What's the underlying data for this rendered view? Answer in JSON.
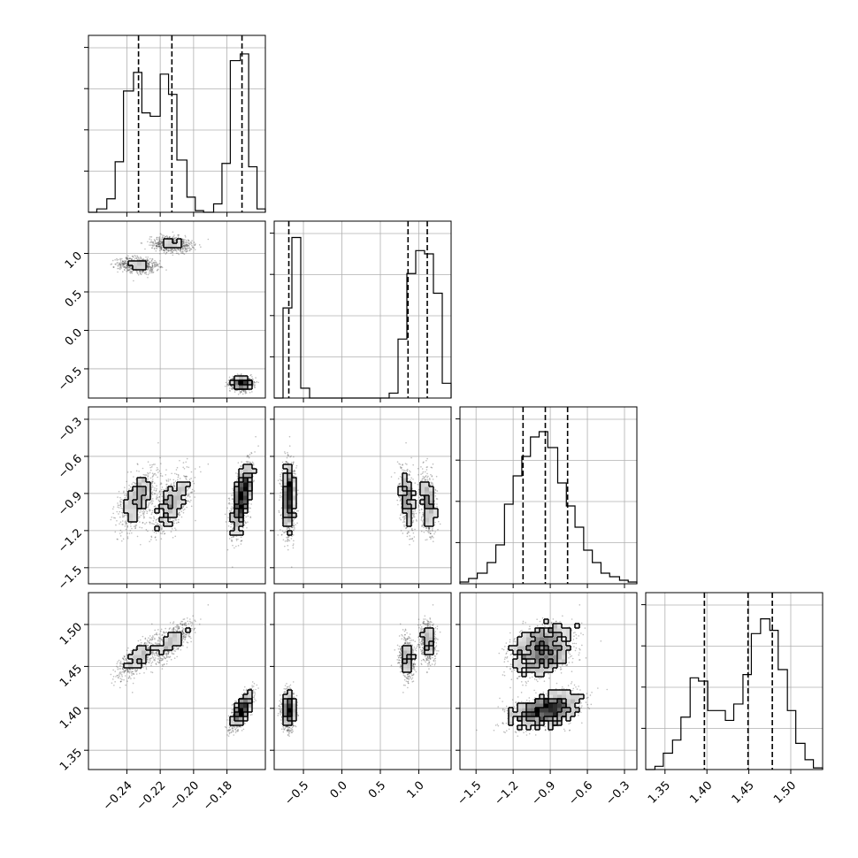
{
  "chart_data": {
    "type": "corner",
    "grid": true,
    "parameters": [
      {
        "range": [
          -0.263,
          -0.157
        ],
        "ticks": [
          -0.24,
          -0.22,
          -0.2,
          -0.18
        ],
        "tick_labels": [
          "−0.24",
          "−0.22",
          "−0.20",
          "−0.18"
        ],
        "quantiles": [
          -0.233,
          -0.213,
          -0.171
        ],
        "hist_ylim": [
          0,
          0.105
        ],
        "hist_bin_edges": [
          -0.263,
          -0.258,
          -0.252,
          -0.247,
          -0.242,
          -0.236,
          -0.231,
          -0.226,
          -0.22,
          -0.215,
          -0.21,
          -0.204,
          -0.199,
          -0.194,
          -0.188,
          -0.183,
          -0.178,
          -0.172,
          -0.167,
          -0.162,
          -0.157
        ],
        "hist_counts": [
          0.0,
          0.002,
          0.008,
          0.03,
          0.072,
          0.083,
          0.059,
          0.057,
          0.082,
          0.07,
          0.031,
          0.009,
          0.001,
          0.0,
          0.005,
          0.029,
          0.09,
          0.094,
          0.027,
          0.002
        ]
      },
      {
        "range": [
          -0.88,
          1.42
        ],
        "ticks": [
          -0.5,
          0.0,
          0.5,
          1.0
        ],
        "tick_labels": [
          "−0.5",
          "0.0",
          "0.5",
          "1.0"
        ],
        "quantiles": [
          -0.69,
          0.86,
          1.11
        ],
        "hist_ylim": [
          0,
          0.108
        ],
        "hist_bin_edges": [
          -0.88,
          -0.765,
          -0.65,
          -0.535,
          -0.42,
          -0.305,
          -0.19,
          -0.075,
          0.04,
          0.155,
          0.27,
          0.385,
          0.5,
          0.615,
          0.73,
          0.845,
          0.96,
          1.075,
          1.19,
          1.305,
          1.42
        ],
        "hist_counts": [
          0.0,
          0.055,
          0.098,
          0.006,
          0.0,
          0.0,
          0.0,
          0.0,
          0.0,
          0.0,
          0.0,
          0.0,
          0.0,
          0.003,
          0.036,
          0.076,
          0.09,
          0.088,
          0.064,
          0.009
        ]
      },
      {
        "range": [
          -1.63,
          -0.2
        ],
        "ticks": [
          -1.5,
          -1.2,
          -0.9,
          -0.6,
          -0.3
        ],
        "tick_labels": [
          "−1.5",
          "−1.2",
          "−0.9",
          "−0.6",
          "−0.3"
        ],
        "quantiles": [
          -1.12,
          -0.94,
          -0.76
        ],
        "hist_ylim": [
          0,
          0.1
        ],
        "hist_bin_edges": [
          -1.63,
          -1.56,
          -1.49,
          -1.41,
          -1.34,
          -1.27,
          -1.2,
          -1.13,
          -1.06,
          -0.99,
          -0.92,
          -0.84,
          -0.77,
          -0.7,
          -0.63,
          -0.56,
          -0.49,
          -0.42,
          -0.34,
          -0.27,
          -0.2
        ],
        "hist_counts": [
          0.001,
          0.003,
          0.006,
          0.012,
          0.022,
          0.045,
          0.061,
          0.072,
          0.083,
          0.086,
          0.077,
          0.057,
          0.044,
          0.032,
          0.019,
          0.012,
          0.006,
          0.004,
          0.002,
          0.001
        ]
      },
      {
        "range": [
          1.327,
          1.538
        ],
        "ticks": [
          1.35,
          1.4,
          1.45,
          1.5
        ],
        "tick_labels": [
          "1.35",
          "1.40",
          "1.45",
          "1.50"
        ],
        "quantiles": [
          1.397,
          1.449,
          1.478
        ],
        "hist_ylim": [
          0,
          0.108
        ],
        "hist_bin_edges": [
          1.327,
          1.338,
          1.348,
          1.359,
          1.369,
          1.38,
          1.39,
          1.401,
          1.411,
          1.422,
          1.432,
          1.443,
          1.453,
          1.464,
          1.475,
          1.485,
          1.496,
          1.506,
          1.517,
          1.527,
          1.538
        ],
        "hist_counts": [
          0.0,
          0.002,
          0.01,
          0.018,
          0.032,
          0.056,
          0.054,
          0.036,
          0.036,
          0.03,
          0.04,
          0.058,
          0.083,
          0.092,
          0.085,
          0.061,
          0.036,
          0.016,
          0.006,
          0.001
        ]
      }
    ],
    "modes": [
      {
        "mean": [
          -0.233,
          0.85,
          -0.94,
          1.46
        ],
        "sd": [
          0.006,
          0.05,
          0.12,
          0.012
        ],
        "rho13": 0.6,
        "rho14": 0.7,
        "rho34": 0.0,
        "rho23": -0.3,
        "weight": 0.25
      },
      {
        "mean": [
          -0.213,
          1.12,
          -0.98,
          1.48
        ],
        "sd": [
          0.006,
          0.05,
          0.12,
          0.012
        ],
        "rho13": 0.6,
        "rho14": 0.7,
        "rho34": 0.0,
        "rho23": -0.3,
        "weight": 0.25
      },
      {
        "mean": [
          -0.171,
          -0.69,
          -0.93,
          1.398
        ],
        "sd": [
          0.003,
          0.04,
          0.14,
          0.01
        ],
        "rho13": 0.6,
        "rho14": 0.7,
        "rho34": 0.0,
        "rho23": 0.0,
        "weight": 0.5
      }
    ]
  }
}
